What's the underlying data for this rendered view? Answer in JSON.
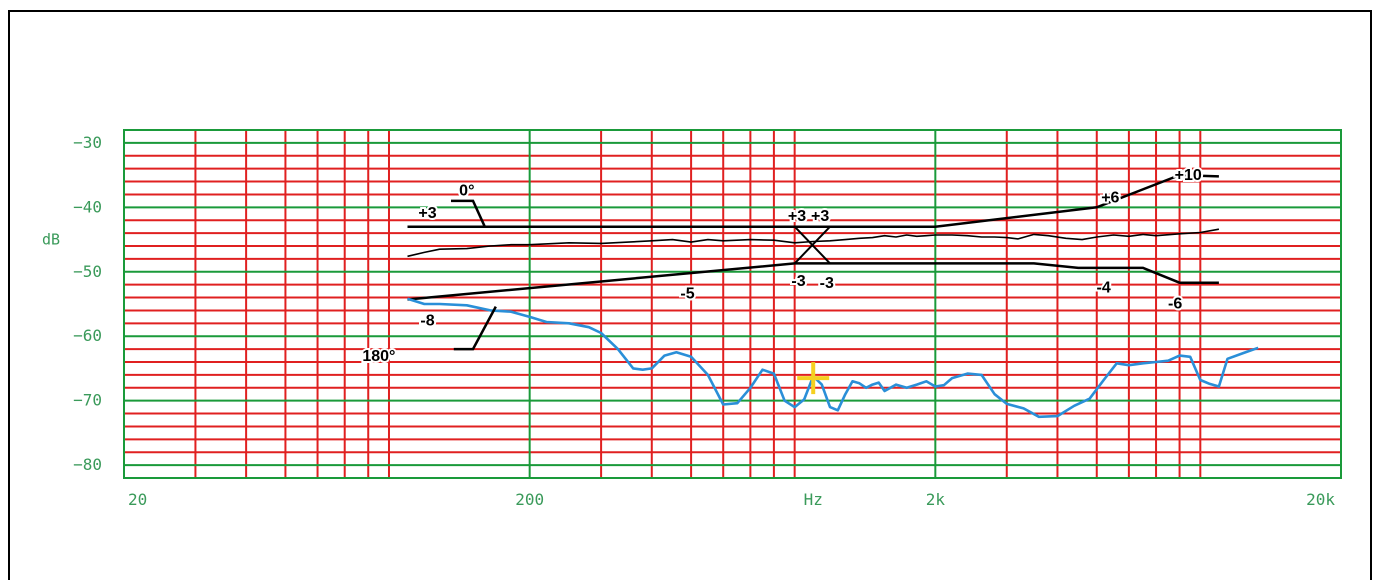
{
  "chart_data": {
    "type": "line",
    "xscale": "log",
    "xlim": [
      20,
      20000
    ],
    "ylim": [
      -82,
      -28
    ],
    "ylabel": "dB",
    "xlabel_center": "Hz",
    "x_tick_labels": [
      {
        "value": 20,
        "label": "20"
      },
      {
        "value": 200,
        "label": "200"
      },
      {
        "value": 2000,
        "label": "2k"
      },
      {
        "value": 20000,
        "label": "20k"
      }
    ],
    "xlabel_value": 1000,
    "y_tick_labels": [
      {
        "value": -30,
        "label": "−30"
      },
      {
        "value": -40,
        "label": "−40"
      },
      {
        "value": -50,
        "label": "−50"
      },
      {
        "value": -60,
        "label": "−60"
      },
      {
        "value": -70,
        "label": "−70"
      },
      {
        "value": -80,
        "label": "−80"
      }
    ],
    "grid": true,
    "grid_colors": {
      "major": "#1a9a3a",
      "minor": "#e02020",
      "frame": "#1a9a3a"
    },
    "series": [
      {
        "color": "#000000",
        "points": [
          [
            100,
            -47.6
          ],
          [
            110,
            -47
          ],
          [
            120,
            -46.5
          ],
          [
            140,
            -46.4
          ],
          [
            160,
            -46
          ],
          [
            180,
            -45.8
          ],
          [
            200,
            -45.8
          ],
          [
            250,
            -45.5
          ],
          [
            300,
            -45.6
          ],
          [
            350,
            -45.4
          ],
          [
            400,
            -45.2
          ],
          [
            450,
            -45
          ],
          [
            500,
            -45.4
          ],
          [
            550,
            -45
          ],
          [
            600,
            -45.2
          ],
          [
            700,
            -45
          ],
          [
            800,
            -45.1
          ],
          [
            900,
            -45.5
          ],
          [
            1000,
            -45.3
          ],
          [
            1100,
            -45.2
          ],
          [
            1200,
            -45
          ],
          [
            1300,
            -44.8
          ],
          [
            1400,
            -44.7
          ],
          [
            1500,
            -44.4
          ],
          [
            1600,
            -44.6
          ],
          [
            1700,
            -44.3
          ],
          [
            1800,
            -44.5
          ],
          [
            1900,
            -44.4
          ],
          [
            2000,
            -44.3
          ],
          [
            2200,
            -44.3
          ],
          [
            2400,
            -44.4
          ],
          [
            2600,
            -44.6
          ],
          [
            2800,
            -44.6
          ],
          [
            3000,
            -44.7
          ],
          [
            3200,
            -44.9
          ],
          [
            3500,
            -44.2
          ],
          [
            3800,
            -44.4
          ],
          [
            4200,
            -44.8
          ],
          [
            4600,
            -45
          ],
          [
            5000,
            -44.6
          ],
          [
            5500,
            -44.3
          ],
          [
            6000,
            -44.5
          ],
          [
            6500,
            -44.2
          ],
          [
            7000,
            -44.4
          ],
          [
            8000,
            -44.1
          ],
          [
            9000,
            -43.9
          ],
          [
            10000,
            -43.4
          ]
        ]
      },
      {
        "color": "#2a8fd8",
        "points": [
          [
            100,
            -54.2
          ],
          [
            110,
            -55
          ],
          [
            120,
            -55
          ],
          [
            140,
            -55.2
          ],
          [
            160,
            -56
          ],
          [
            180,
            -56.2
          ],
          [
            200,
            -57
          ],
          [
            220,
            -57.8
          ],
          [
            250,
            -58
          ],
          [
            280,
            -58.6
          ],
          [
            300,
            -59.5
          ],
          [
            330,
            -62
          ],
          [
            360,
            -65
          ],
          [
            380,
            -65.2
          ],
          [
            400,
            -65
          ],
          [
            430,
            -63
          ],
          [
            460,
            -62.5
          ],
          [
            500,
            -63.2
          ],
          [
            550,
            -66
          ],
          [
            600,
            -70.6
          ],
          [
            650,
            -70.4
          ],
          [
            700,
            -68
          ],
          [
            750,
            -65.2
          ],
          [
            800,
            -65.8
          ],
          [
            850,
            -70
          ],
          [
            900,
            -71
          ],
          [
            950,
            -69.8
          ],
          [
            1000,
            -66.2
          ],
          [
            1050,
            -67.5
          ],
          [
            1100,
            -71
          ],
          [
            1150,
            -71.5
          ],
          [
            1200,
            -69
          ],
          [
            1250,
            -67
          ],
          [
            1300,
            -67.3
          ],
          [
            1350,
            -68
          ],
          [
            1400,
            -67.5
          ],
          [
            1450,
            -67.2
          ],
          [
            1500,
            -68.5
          ],
          [
            1550,
            -68
          ],
          [
            1600,
            -67.5
          ],
          [
            1700,
            -68
          ],
          [
            1800,
            -67.5
          ],
          [
            1900,
            -67
          ],
          [
            2000,
            -67.8
          ],
          [
            2100,
            -67.6
          ],
          [
            2200,
            -66.5
          ],
          [
            2400,
            -65.8
          ],
          [
            2600,
            -66
          ],
          [
            2800,
            -69
          ],
          [
            3000,
            -70.5
          ],
          [
            3300,
            -71.2
          ],
          [
            3600,
            -72.5
          ],
          [
            4000,
            -72.4
          ],
          [
            4400,
            -70.8
          ],
          [
            4800,
            -69.7
          ],
          [
            5200,
            -66.8
          ],
          [
            5600,
            -64.2
          ],
          [
            6000,
            -64.5
          ],
          [
            6500,
            -64.2
          ],
          [
            7000,
            -64
          ],
          [
            7500,
            -63.8
          ],
          [
            8000,
            -63
          ],
          [
            8500,
            -63.2
          ],
          [
            9000,
            -66.8
          ],
          [
            9500,
            -67.4
          ],
          [
            10000,
            -67.8
          ],
          [
            10500,
            -63.5
          ],
          [
            11500,
            -62.6
          ],
          [
            12500,
            -61.8
          ]
        ]
      }
    ],
    "tolerance_lines": [
      {
        "points": [
          [
            100,
            -43
          ],
          [
            1000,
            -43
          ],
          [
            2000,
            -43
          ],
          [
            5000,
            -40
          ],
          [
            8000,
            -35
          ],
          [
            10000,
            -35.2
          ]
        ]
      },
      {
        "points": [
          [
            100,
            -54.3
          ],
          [
            900,
            -48.7
          ],
          [
            1100,
            -48.7
          ],
          [
            1900,
            -48.7
          ],
          [
            3500,
            -48.7
          ],
          [
            4500,
            -49.4
          ],
          [
            6500,
            -49.4
          ],
          [
            8000,
            -51.7
          ],
          [
            10000,
            -51.7
          ]
        ]
      }
    ],
    "cross_lines": [
      {
        "points": [
          [
            900,
            -43
          ],
          [
            1100,
            -48.7
          ]
        ]
      },
      {
        "points": [
          [
            900,
            -48.7
          ],
          [
            1100,
            -43
          ]
        ]
      }
    ],
    "annotations": [
      {
        "text": "0°",
        "x": 140,
        "y": -37.2,
        "callout": [
          [
            128,
            -39
          ],
          [
            145,
            -39
          ],
          [
            155,
            -43
          ]
        ]
      },
      {
        "text": "+3",
        "x": 112,
        "y": -40.7
      },
      {
        "text": "+3",
        "x": 912,
        "y": -41.2
      },
      {
        "text": "+3",
        "x": 1040,
        "y": -41.2
      },
      {
        "text": "+6",
        "x": 5400,
        "y": -38.3
      },
      {
        "text": "+10",
        "x": 8400,
        "y": -34.8
      },
      {
        "text": "-3",
        "x": 920,
        "y": -51.3
      },
      {
        "text": "-3",
        "x": 1080,
        "y": -51.6
      },
      {
        "text": "-5",
        "x": 490,
        "y": -53.2
      },
      {
        "text": "-4",
        "x": 5200,
        "y": -52.3
      },
      {
        "text": "-6",
        "x": 7800,
        "y": -54.8
      },
      {
        "text": "-8",
        "x": 112,
        "y": -57.4
      },
      {
        "text": "180°",
        "x": 85,
        "y": -62.9,
        "callout": [
          [
            130,
            -62
          ],
          [
            145,
            -62
          ],
          [
            165,
            -55.4
          ]
        ]
      }
    ],
    "marker": {
      "x": 1000,
      "y": -66.5,
      "color": "#f5d020"
    }
  }
}
